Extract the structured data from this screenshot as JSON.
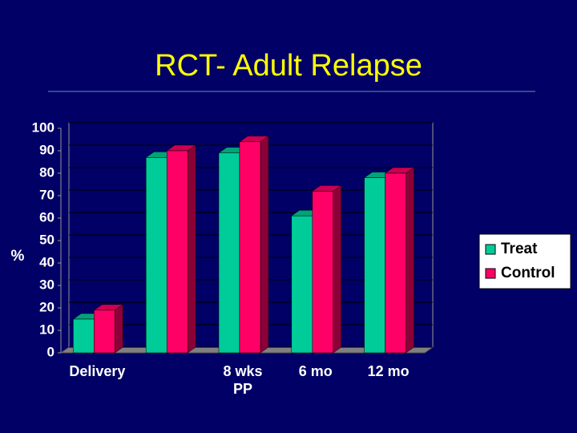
{
  "chart_data": {
    "type": "bar",
    "title": "RCT- Adult Relapse",
    "y_label": "%",
    "categories": [
      "Delivery",
      null,
      "8 wks PP",
      "6 mo",
      "12 mo"
    ],
    "series": [
      {
        "name": "Treat",
        "color": "#00cc99",
        "values": [
          15,
          87,
          89,
          61,
          78
        ]
      },
      {
        "name": "Control",
        "color": "#ff0066",
        "values": [
          19,
          90,
          94,
          72,
          80
        ]
      }
    ],
    "ylim": [
      0,
      100
    ],
    "yticks": [
      0,
      10,
      20,
      30,
      40,
      50,
      60,
      70,
      80,
      90,
      100
    ],
    "grid": true,
    "legend": "right"
  }
}
